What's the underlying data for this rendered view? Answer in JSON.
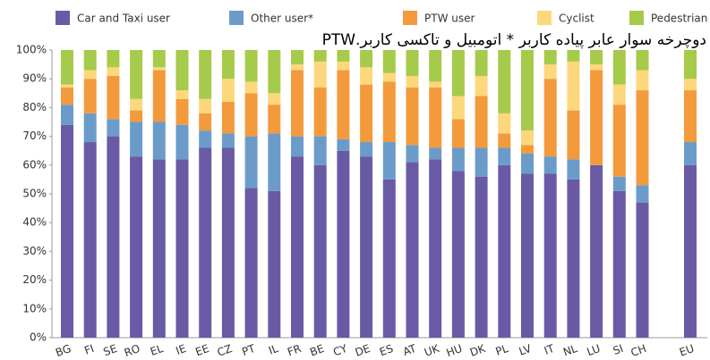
{
  "chart_data": {
    "type": "stacked_bar",
    "annotation": "دوچرخه سوار عابر پیاده کاربر * اتومبیل و تاکسی کاربر.PTW",
    "categories": [
      "BG",
      "FI",
      "SE",
      "RO",
      "EL",
      "IE",
      "EE",
      "CZ",
      "PT",
      "IL",
      "FR",
      "BE",
      "CY",
      "DE",
      "ES",
      "AT",
      "UK",
      "HU",
      "DK",
      "PL",
      "LV",
      "IT",
      "NL",
      "LU",
      "SI",
      "CH",
      "EU"
    ],
    "series": [
      {
        "name": "Car and Taxi user",
        "color": "#6a5aa6",
        "values": [
          74,
          68,
          70,
          63,
          62,
          62,
          66,
          66,
          52,
          51,
          63,
          60,
          65,
          63,
          55,
          61,
          62,
          58,
          56,
          60,
          57,
          57,
          55,
          60,
          51,
          47,
          60
        ]
      },
      {
        "name": "Other user*",
        "color": "#6b9cc9",
        "values": [
          7,
          10,
          6,
          12,
          13,
          12,
          6,
          5,
          18,
          20,
          7,
          10,
          4,
          5,
          13,
          6,
          4,
          8,
          10,
          6,
          7,
          6,
          7,
          0,
          5,
          6,
          8
        ]
      },
      {
        "name": "PTW user",
        "color": "#f39a3c",
        "values": [
          6,
          12,
          15,
          4,
          18,
          9,
          6,
          11,
          15,
          10,
          23,
          17,
          24,
          20,
          21,
          20,
          21,
          10,
          18,
          5,
          3,
          27,
          17,
          33,
          25,
          33,
          18
        ]
      },
      {
        "name": "Cyclist",
        "color": "#fcd77c",
        "values": [
          1,
          3,
          3,
          4,
          1,
          3,
          5,
          8,
          4,
          4,
          2,
          9,
          3,
          6,
          3,
          4,
          2,
          8,
          7,
          7,
          5,
          5,
          17,
          2,
          7,
          7,
          4
        ]
      },
      {
        "name": "Pedestrian",
        "color": "#a6ca4a",
        "values": [
          12,
          7,
          6,
          17,
          6,
          14,
          17,
          10,
          11,
          15,
          5,
          4,
          4,
          6,
          8,
          9,
          11,
          16,
          9,
          22,
          28,
          5,
          4,
          5,
          12,
          7,
          10
        ]
      }
    ],
    "ylim": [
      0,
      100
    ],
    "yticks": [
      {
        "value": 0,
        "label": "0%"
      },
      {
        "value": 10,
        "label": "10%"
      },
      {
        "value": 20,
        "label": "20%"
      },
      {
        "value": 30,
        "label": "30%"
      },
      {
        "value": 40,
        "label": "40%"
      },
      {
        "value": 50,
        "label": "50%"
      },
      {
        "value": 60,
        "label": "60%"
      },
      {
        "value": 70,
        "label": "70%"
      },
      {
        "value": 80,
        "label": "80%"
      },
      {
        "value": 90,
        "label": "90%"
      },
      {
        "value": 100,
        "label": "100%"
      }
    ],
    "legend": "top"
  }
}
